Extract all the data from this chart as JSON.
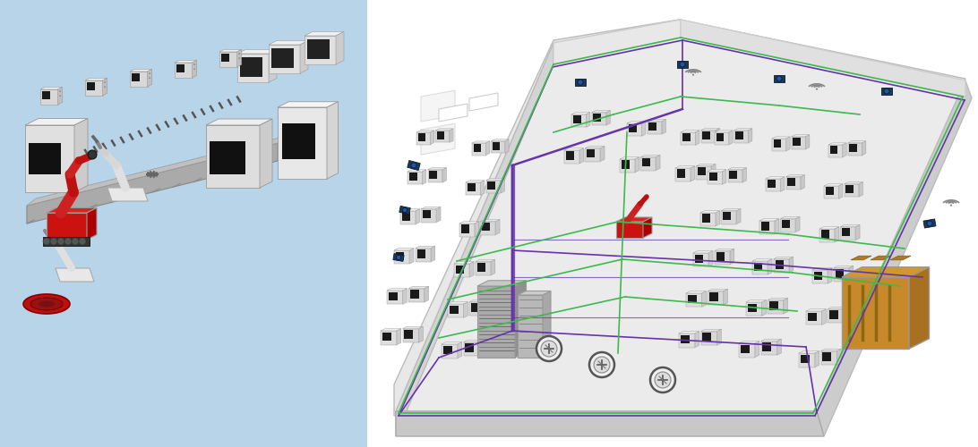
{
  "bg_left": "#b8d4e8",
  "bg_right": "#ffffff",
  "green_line_color": "#3dba4e",
  "purple_line_color": "#6633aa",
  "machine_top": "#f0f0f0",
  "machine_front": "#d8d8d8",
  "machine_side": "#c0c0c0",
  "machine_screen": "#1a1a1a",
  "generator_color": "#c8902a",
  "generator_side": "#a07020",
  "server_top": "#c8c8c8",
  "server_front": "#aaaaaa",
  "server_side": "#909090",
  "robot_red": "#cc2222",
  "floor_color": "#e8e8e8",
  "wall_left_color": "#d4d4d4",
  "wall_right_color": "#cccccc",
  "wall_top_color": "#e4e4e4",
  "figsize": [
    10.92,
    5.0
  ],
  "dpi": 100
}
